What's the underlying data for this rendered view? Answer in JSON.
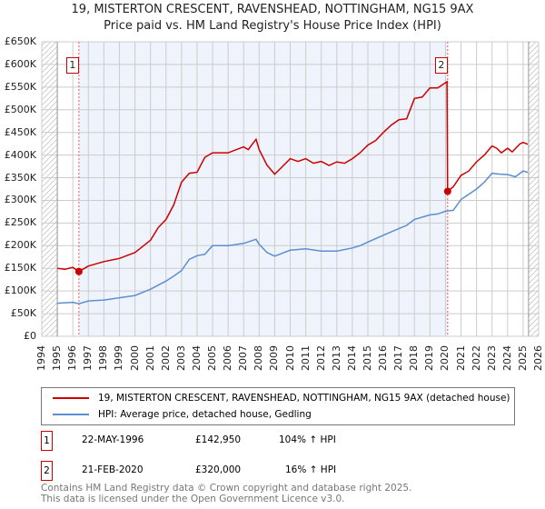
{
  "chart_data": {
    "type": "line",
    "title": "19, MISTERTON CRESCENT, RAVENSHEAD, NOTTINGHAM, NG15 9AX",
    "subtitle": "Price paid vs. HM Land Registry's House Price Index (HPI)",
    "xlim": [
      1994,
      2026
    ],
    "ylim": [
      0,
      650000
    ],
    "xticks": [
      "1994",
      "1995",
      "1996",
      "1997",
      "1998",
      "1999",
      "2000",
      "2001",
      "2002",
      "2003",
      "2004",
      "2005",
      "2006",
      "2007",
      "2008",
      "2009",
      "2010",
      "2011",
      "2012",
      "2013",
      "2014",
      "2015",
      "2016",
      "2017",
      "2018",
      "2019",
      "2020",
      "2021",
      "2022",
      "2023",
      "2024",
      "2025",
      "2026"
    ],
    "yticks": [
      "£0",
      "£50K",
      "£100K",
      "£150K",
      "£200K",
      "£250K",
      "£300K",
      "£350K",
      "£400K",
      "£450K",
      "£500K",
      "£550K",
      "£600K",
      "£650K"
    ],
    "grid": true,
    "series": [
      {
        "name": "19, MISTERTON CRESCENT, RAVENSHEAD, NOTTINGHAM, NG15 9AX (detached house)",
        "color": "#cc0000",
        "x": [
          1995,
          1995.5,
          1996,
          1996.39,
          1997,
          1998,
          1999,
          2000,
          2001,
          2001.5,
          2002,
          2002.5,
          2003,
          2003.5,
          2004,
          2004.5,
          2005,
          2006,
          2007,
          2007.3,
          2007.8,
          2008,
          2008.5,
          2009,
          2009.5,
          2010,
          2010.5,
          2011,
          2011.5,
          2012,
          2012.5,
          2013,
          2013.5,
          2014,
          2014.5,
          2015,
          2015.5,
          2016,
          2016.5,
          2017,
          2017.5,
          2018,
          2018.5,
          2019,
          2019.5,
          2020.1,
          2020.14,
          2020.5,
          2021,
          2021.5,
          2022,
          2022.5,
          2023,
          2023.3,
          2023.6,
          2024,
          2024.3,
          2024.8,
          2025,
          2025.3
        ],
        "y": [
          150,
          148,
          152,
          143,
          155,
          165,
          172,
          185,
          212,
          240,
          258,
          290,
          340,
          360,
          362,
          395,
          405,
          405,
          418,
          412,
          435,
          412,
          378,
          358,
          375,
          392,
          386,
          392,
          382,
          386,
          377,
          385,
          382,
          392,
          405,
          422,
          432,
          450,
          466,
          478,
          480,
          525,
          528,
          548,
          548,
          562,
          320,
          330,
          355,
          365,
          385,
          400,
          420,
          415,
          405,
          415,
          407,
          425,
          428,
          424
        ]
      },
      {
        "name": "HPI: Average price, detached house, Gedling",
        "color": "#5b8fd1",
        "x": [
          1995,
          1996,
          1996.4,
          1997,
          1998,
          1999,
          2000,
          2001,
          2002,
          2002.5,
          2003,
          2003.5,
          2004,
          2004.5,
          2005,
          2006,
          2007,
          2007.8,
          2008,
          2008.5,
          2009,
          2010,
          2011,
          2012,
          2013,
          2014,
          2014.5,
          2015,
          2016,
          2017,
          2017.5,
          2018,
          2019,
          2019.5,
          2020,
          2020.5,
          2021,
          2022,
          2022.5,
          2023,
          2023.5,
          2024,
          2024.5,
          2025,
          2025.3
        ],
        "y": [
          73,
          75,
          72,
          78,
          80,
          85,
          90,
          104,
          122,
          133,
          145,
          170,
          178,
          181,
          200,
          200,
          205,
          214,
          203,
          185,
          177,
          190,
          193,
          188,
          188,
          195,
          200,
          208,
          223,
          238,
          245,
          258,
          268,
          270,
          276,
          278,
          302,
          325,
          340,
          360,
          358,
          357,
          352,
          365,
          362
        ]
      }
    ],
    "y_units": "thousands GBP",
    "sales": [
      {
        "label": "1",
        "x": 1996.39,
        "y": 142.95,
        "date": "22-MAY-1996",
        "price": "£142,950",
        "hpi": "104% ↑ HPI"
      },
      {
        "label": "2",
        "x": 2020.14,
        "y": 320,
        "date": "21-FEB-2020",
        "price": "£320,000",
        "hpi": "16% ↑ HPI"
      }
    ],
    "hatched_before": 1995,
    "hatched_after": 2025.35
  },
  "footer": {
    "line1": "Contains HM Land Registry data © Crown copyright and database right 2025.",
    "line2": "This data is licensed under the Open Government Licence v3.0."
  }
}
